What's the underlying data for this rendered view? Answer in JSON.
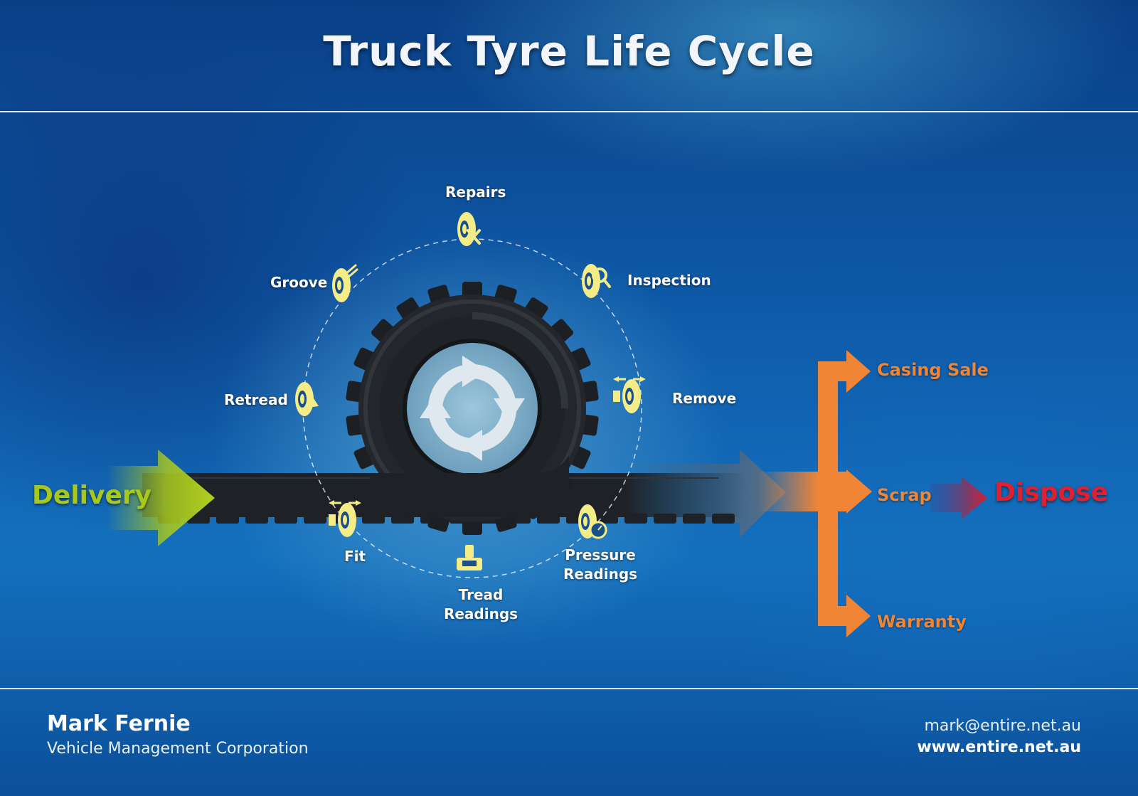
{
  "title": "Truck Tyre Life Cycle",
  "cycle": {
    "center_icon": "circular-arrows-icon",
    "stages": [
      {
        "label": "Repairs",
        "icon": "tyre-repair-icon"
      },
      {
        "label": "Inspection",
        "icon": "tyre-inspection-icon"
      },
      {
        "label": "Remove",
        "icon": "tyre-remove-icon"
      },
      {
        "label": "Pressure Readings",
        "line1": "Pressure",
        "line2": "Readings",
        "icon": "tyre-pressure-gauge-icon"
      },
      {
        "label": "Tread Readings",
        "line1": "Tread",
        "line2": "Readings",
        "icon": "tread-depth-gauge-icon"
      },
      {
        "label": "Fit",
        "icon": "tyre-fit-icon"
      },
      {
        "label": "Retread",
        "icon": "tyre-retread-icon"
      },
      {
        "label": "Groove",
        "icon": "tyre-groove-icon"
      }
    ]
  },
  "flow": {
    "start": "Delivery",
    "outcomes": [
      "Casing Sale",
      "Scrap",
      "Warranty"
    ],
    "final": "Dispose"
  },
  "colors": {
    "delivery": "#a8c81e",
    "outcomes": "#f08535",
    "dispose": "#e02030",
    "icons": "#f4ec86"
  },
  "footer": {
    "name": "Mark Fernie",
    "organization": "Vehicle Management Corporation",
    "email": "mark@entire.net.au",
    "website": "www.entire.net.au"
  }
}
